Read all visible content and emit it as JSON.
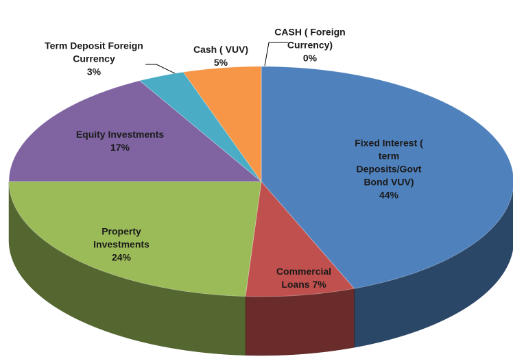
{
  "chart_data": {
    "type": "pie",
    "categories": [
      "Fixed Interest ( term Deposits/Govt Bond VUV)",
      "Commercial Loans",
      "Property Investments",
      "Equity Investments",
      "Term Deposit Foreign Currency",
      "Cash ( VUV)",
      "CASH ( Foreign Currency)"
    ],
    "values": [
      44,
      7,
      24,
      17,
      3,
      5,
      0
    ],
    "value_labels": [
      "44%",
      "7%",
      "24%",
      "17%",
      "3%",
      "5%",
      "0%"
    ],
    "colors": [
      "#4f81bd",
      "#c0504d",
      "#9bbb59",
      "#8064a2",
      "#4bacc6",
      "#f79646",
      "#c9c9c9"
    ]
  }
}
